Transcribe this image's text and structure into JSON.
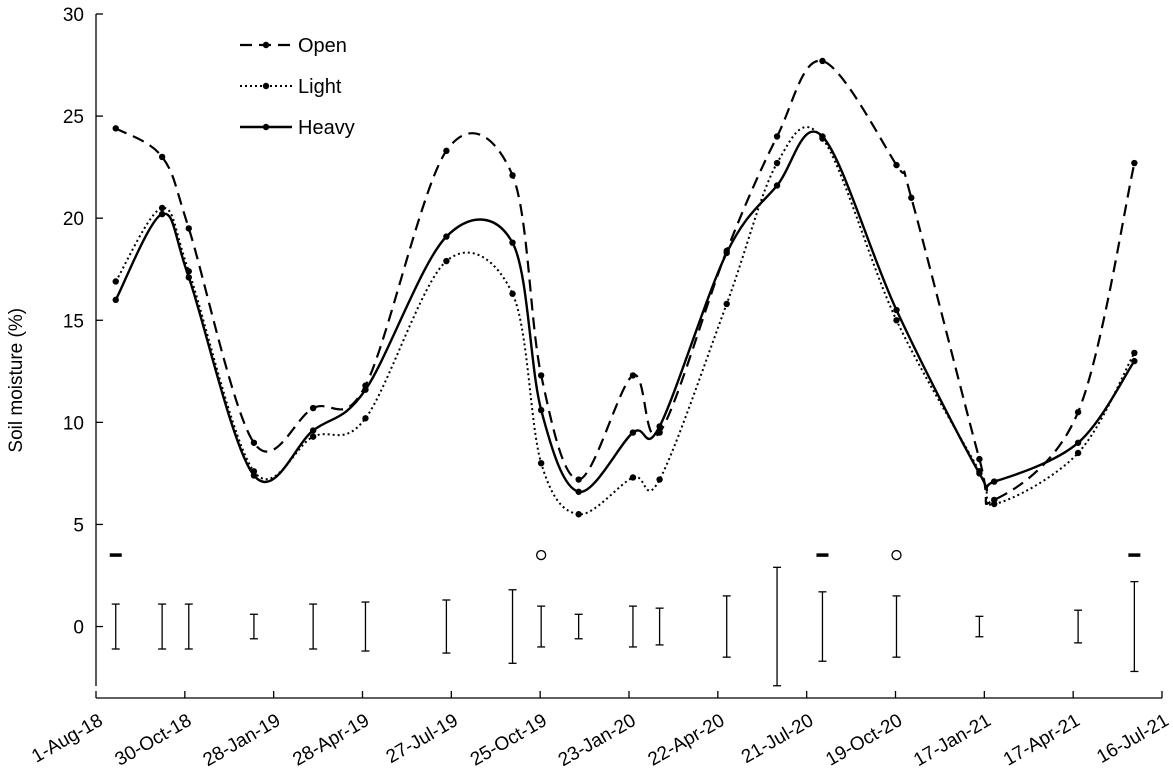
{
  "chart_data": {
    "type": "line",
    "title": "",
    "xlabel": "",
    "ylabel": "Soil moisture (%)",
    "ylim": [
      -3.5,
      30
    ],
    "y_ticks": [
      0,
      5,
      10,
      15,
      20,
      25,
      30
    ],
    "x_range": [
      "2018-08-01",
      "2021-07-16"
    ],
    "x_ticks": [
      {
        "date": "2018-08-01",
        "label": "1-Aug-18"
      },
      {
        "date": "2018-10-30",
        "label": "30-Oct-18"
      },
      {
        "date": "2019-01-28",
        "label": "28-Jan-19"
      },
      {
        "date": "2019-04-28",
        "label": "28-Apr-19"
      },
      {
        "date": "2019-07-27",
        "label": "27-Jul-19"
      },
      {
        "date": "2019-10-25",
        "label": "25-Oct-19"
      },
      {
        "date": "2020-01-23",
        "label": "23-Jan-20"
      },
      {
        "date": "2020-04-22",
        "label": "22-Apr-20"
      },
      {
        "date": "2020-07-21",
        "label": "21-Jul-20"
      },
      {
        "date": "2020-10-19",
        "label": "19-Oct-20"
      },
      {
        "date": "2021-01-17",
        "label": "17-Jan-21"
      },
      {
        "date": "2021-04-17",
        "label": "17-Apr-21"
      },
      {
        "date": "2021-07-16",
        "label": "16-Jul-21"
      }
    ],
    "legend_position": "top-left",
    "grid": false,
    "series": [
      {
        "name": "Open",
        "style": "dashed",
        "points": [
          [
            "2018-08-21",
            24.4
          ],
          [
            "2018-10-07",
            23.0
          ],
          [
            "2018-11-03",
            19.5
          ],
          [
            "2019-01-08",
            9.0
          ],
          [
            "2019-03-09",
            10.7
          ],
          [
            "2019-05-01",
            11.8
          ],
          [
            "2019-07-22",
            23.3
          ],
          [
            "2019-09-27",
            22.1
          ],
          [
            "2019-10-26",
            12.3
          ],
          [
            "2019-12-03",
            7.2
          ],
          [
            "2020-01-27",
            12.3
          ],
          [
            "2020-02-23",
            9.5
          ],
          [
            "2020-05-01",
            18.4
          ],
          [
            "2020-06-21",
            24.0
          ],
          [
            "2020-08-06",
            27.7
          ],
          [
            "2020-10-20",
            22.6
          ],
          [
            "2020-11-04",
            21.0
          ],
          [
            "2021-01-12",
            8.2
          ],
          [
            "2021-01-27",
            6.2
          ],
          [
            "2021-04-22",
            10.5
          ],
          [
            "2021-06-18",
            22.7
          ]
        ]
      },
      {
        "name": "Light",
        "style": "dotted",
        "points": [
          [
            "2018-08-21",
            16.9
          ],
          [
            "2018-10-07",
            20.5
          ],
          [
            "2018-11-03",
            17.4
          ],
          [
            "2019-01-08",
            7.6
          ],
          [
            "2019-03-09",
            9.3
          ],
          [
            "2019-05-01",
            10.2
          ],
          [
            "2019-07-22",
            17.9
          ],
          [
            "2019-09-27",
            16.3
          ],
          [
            "2019-10-26",
            8.0
          ],
          [
            "2019-12-03",
            5.5
          ],
          [
            "2020-01-27",
            7.3
          ],
          [
            "2020-02-23",
            7.2
          ],
          [
            "2020-05-01",
            15.8
          ],
          [
            "2020-06-21",
            22.7
          ],
          [
            "2020-08-06",
            23.9
          ],
          [
            "2020-10-20",
            15.0
          ],
          [
            "2021-01-12",
            7.6
          ],
          [
            "2021-01-27",
            6.0
          ],
          [
            "2021-04-22",
            8.5
          ],
          [
            "2021-06-18",
            13.4
          ]
        ]
      },
      {
        "name": "Heavy",
        "style": "solid",
        "points": [
          [
            "2018-08-21",
            16.0
          ],
          [
            "2018-10-07",
            20.2
          ],
          [
            "2018-11-03",
            17.1
          ],
          [
            "2019-01-08",
            7.4
          ],
          [
            "2019-03-09",
            9.6
          ],
          [
            "2019-05-01",
            11.6
          ],
          [
            "2019-07-22",
            19.1
          ],
          [
            "2019-09-27",
            18.8
          ],
          [
            "2019-10-26",
            10.6
          ],
          [
            "2019-12-03",
            6.6
          ],
          [
            "2020-01-27",
            9.5
          ],
          [
            "2020-02-23",
            9.8
          ],
          [
            "2020-05-01",
            18.3
          ],
          [
            "2020-06-21",
            21.6
          ],
          [
            "2020-08-06",
            24.0
          ],
          [
            "2020-10-20",
            15.5
          ],
          [
            "2021-01-12",
            7.5
          ],
          [
            "2021-01-27",
            7.1
          ],
          [
            "2021-04-22",
            9.0
          ],
          [
            "2021-06-18",
            13.0
          ]
        ]
      }
    ],
    "error_bars": [
      {
        "date": "2018-08-21",
        "half_range": 1.1
      },
      {
        "date": "2018-10-07",
        "half_range": 1.1
      },
      {
        "date": "2018-11-03",
        "half_range": 1.1
      },
      {
        "date": "2019-01-08",
        "half_range": 0.6
      },
      {
        "date": "2019-03-09",
        "half_range": 1.1
      },
      {
        "date": "2019-05-01",
        "half_range": 1.2
      },
      {
        "date": "2019-07-22",
        "half_range": 1.3
      },
      {
        "date": "2019-09-27",
        "half_range": 1.8
      },
      {
        "date": "2019-10-26",
        "half_range": 1.0
      },
      {
        "date": "2019-12-03",
        "half_range": 0.6
      },
      {
        "date": "2020-01-27",
        "half_range": 1.0
      },
      {
        "date": "2020-02-23",
        "half_range": 0.9
      },
      {
        "date": "2020-05-01",
        "half_range": 1.5
      },
      {
        "date": "2020-06-21",
        "half_range": 2.9
      },
      {
        "date": "2020-08-06",
        "half_range": 1.7
      },
      {
        "date": "2020-10-20",
        "half_range": 1.5
      },
      {
        "date": "2021-01-12",
        "half_range": 0.5
      },
      {
        "date": "2021-04-22",
        "half_range": 0.8
      },
      {
        "date": "2021-06-18",
        "half_range": 2.2
      }
    ],
    "significance_markers": [
      {
        "date": "2018-08-21",
        "symbol": "dash"
      },
      {
        "date": "2019-10-26",
        "symbol": "circle"
      },
      {
        "date": "2020-08-06",
        "symbol": "dash"
      },
      {
        "date": "2020-10-20",
        "symbol": "circle"
      },
      {
        "date": "2021-06-18",
        "symbol": "dash"
      }
    ],
    "significance_y": 3.5
  }
}
